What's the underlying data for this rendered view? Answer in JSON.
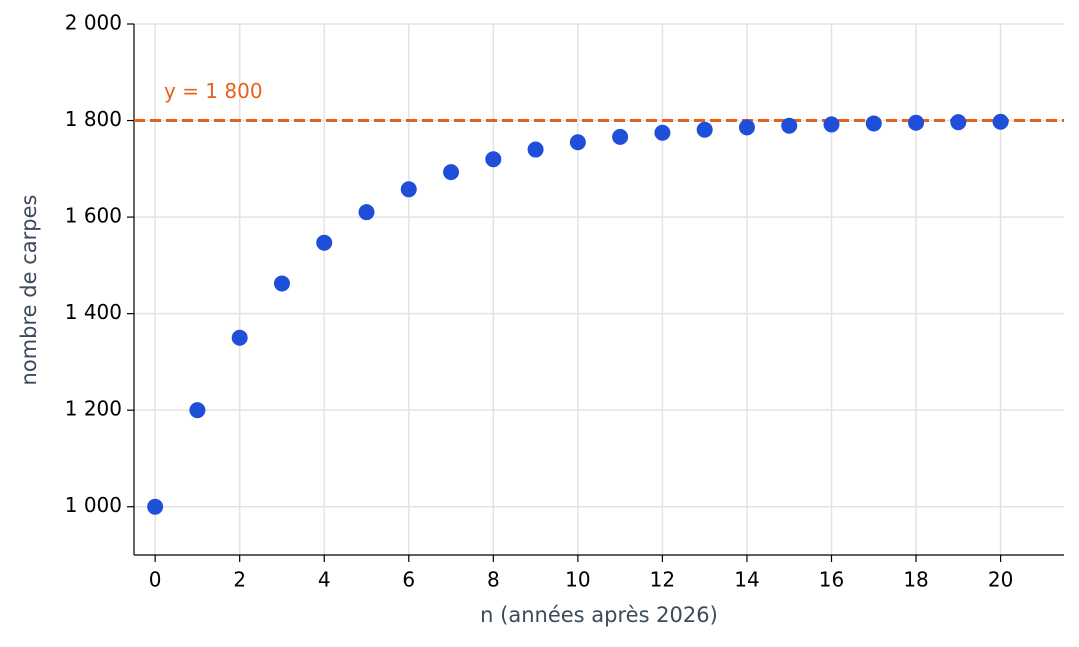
{
  "chart_data": {
    "type": "scatter",
    "x_label": "n (années après 2026)",
    "y_label": "nombre de carpes",
    "x": [
      0,
      1,
      2,
      3,
      4,
      5,
      6,
      7,
      8,
      9,
      10,
      11,
      12,
      13,
      14,
      15,
      16,
      17,
      18,
      19,
      20
    ],
    "series": [
      {
        "color": "#1f4fd8",
        "values": [
          1000,
          1200,
          1350,
          1462.5,
          1546.9,
          1610.2,
          1657.6,
          1693.2,
          1719.9,
          1739.9,
          1755,
          1766.2,
          1774.7,
          1781,
          1785.8,
          1789.3,
          1792,
          1794,
          1795.5,
          1796.6,
          1797.5
        ]
      }
    ],
    "hline": {
      "value": 1800,
      "label": "y = 1 800",
      "color": "#e8601c"
    },
    "xlim": [
      -0.5,
      21.5
    ],
    "ylim": [
      900,
      2000
    ],
    "xticks": [
      0,
      2,
      4,
      6,
      8,
      10,
      12,
      14,
      16,
      18,
      20
    ],
    "yticks": [
      {
        "value": 1000,
        "label": "1 000"
      },
      {
        "value": 1200,
        "label": "1 200"
      },
      {
        "value": 1400,
        "label": "1 400"
      },
      {
        "value": 1600,
        "label": "1 600"
      },
      {
        "value": 1800,
        "label": "1 800"
      },
      {
        "value": 2000,
        "label": "2 000"
      }
    ],
    "grid": true
  }
}
